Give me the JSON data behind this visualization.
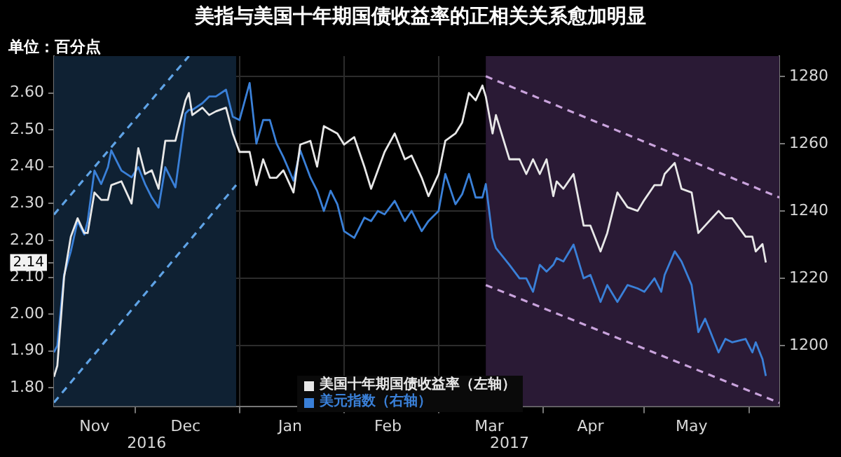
{
  "chart_data": {
    "type": "line",
    "title": "美指与美国十年期国债收益率的正相关关系愈加明显",
    "ylabel": "单位：百分点",
    "x": [
      "2016-11-07",
      "2016-11-08",
      "2016-11-10",
      "2016-11-12",
      "2016-11-14",
      "2016-11-16",
      "2016-11-17",
      "2016-11-19",
      "2016-11-21",
      "2016-11-23",
      "2016-11-24",
      "2016-11-27",
      "2016-11-30",
      "2016-12-02",
      "2016-12-04",
      "2016-12-06",
      "2016-12-08",
      "2016-12-10",
      "2016-12-13",
      "2016-12-16",
      "2016-12-17",
      "2016-12-18",
      "2016-12-21",
      "2016-12-23",
      "2016-12-25",
      "2016-12-28",
      "2016-12-30",
      "2017-01-01",
      "2017-01-04",
      "2017-01-06",
      "2017-01-08",
      "2017-01-10",
      "2017-01-12",
      "2017-01-14",
      "2017-01-17",
      "2017-01-19",
      "2017-01-22",
      "2017-01-24",
      "2017-01-26",
      "2017-01-28",
      "2017-01-30",
      "2017-02-01",
      "2017-02-04",
      "2017-02-07",
      "2017-02-09",
      "2017-02-11",
      "2017-02-13",
      "2017-02-16",
      "2017-02-19",
      "2017-02-21",
      "2017-02-24",
      "2017-02-26",
      "2017-03-01",
      "2017-03-03",
      "2017-03-06",
      "2017-03-08",
      "2017-03-10",
      "2017-03-12",
      "2017-03-14",
      "2017-03-15",
      "2017-03-17",
      "2017-03-18",
      "2017-03-22",
      "2017-03-25",
      "2017-03-27",
      "2017-03-29",
      "2017-03-31",
      "2017-04-02",
      "2017-04-04",
      "2017-04-05",
      "2017-04-07",
      "2017-04-10",
      "2017-04-13",
      "2017-04-15",
      "2017-04-18",
      "2017-04-20",
      "2017-04-23",
      "2017-04-26",
      "2017-04-29",
      "2017-05-01",
      "2017-05-04",
      "2017-05-06",
      "2017-05-07",
      "2017-05-10",
      "2017-05-12",
      "2017-05-15",
      "2017-05-17",
      "2017-05-19",
      "2017-05-23",
      "2017-05-25",
      "2017-05-27",
      "2017-05-31",
      "2017-06-02",
      "2017-06-03",
      "2017-06-05",
      "2017-06-06"
    ],
    "series": [
      {
        "name": "美国十年期国债收益率（左轴）",
        "color": "#e8e8e8",
        "axis": "y",
        "values": [
          1.83,
          1.86,
          2.1,
          2.21,
          2.26,
          2.22,
          2.22,
          2.33,
          2.31,
          2.31,
          2.35,
          2.36,
          2.3,
          2.45,
          2.38,
          2.39,
          2.34,
          2.47,
          2.47,
          2.58,
          2.6,
          2.54,
          2.56,
          2.54,
          2.55,
          2.56,
          2.49,
          2.44,
          2.44,
          2.35,
          2.42,
          2.37,
          2.37,
          2.39,
          2.33,
          2.46,
          2.47,
          2.4,
          2.51,
          2.5,
          2.49,
          2.46,
          2.48,
          2.4,
          2.34,
          2.39,
          2.44,
          2.49,
          2.42,
          2.43,
          2.37,
          2.32,
          2.38,
          2.47,
          2.49,
          2.52,
          2.6,
          2.58,
          2.62,
          2.59,
          2.49,
          2.54,
          2.42,
          2.42,
          2.38,
          2.42,
          2.38,
          2.42,
          2.32,
          2.36,
          2.34,
          2.38,
          2.24,
          2.24,
          2.17,
          2.22,
          2.33,
          2.29,
          2.28,
          2.31,
          2.35,
          2.35,
          2.38,
          2.41,
          2.34,
          2.33,
          2.22,
          2.24,
          2.28,
          2.26,
          2.26,
          2.21,
          2.21,
          2.17,
          2.19,
          2.14
        ]
      },
      {
        "name": "美元指数（右轴）",
        "color": "#3a80d8",
        "axis": "y2",
        "values": [
          1198,
          1200,
          1221,
          1228,
          1237,
          1233,
          1237,
          1252,
          1248,
          1253,
          1258,
          1252,
          1250,
          1253,
          1248,
          1244,
          1241,
          1253,
          1247,
          1269,
          1270,
          1270,
          1272,
          1274,
          1274,
          1276,
          1268,
          1267,
          1278,
          1260,
          1267,
          1267,
          1260,
          1256,
          1249,
          1258,
          1250,
          1246,
          1240,
          1246,
          1242,
          1234,
          1232,
          1238,
          1237,
          1240,
          1239,
          1243,
          1237,
          1240,
          1234,
          1237,
          1240,
          1251,
          1242,
          1245,
          1251,
          1244,
          1244,
          1248,
          1232,
          1229,
          1224,
          1220,
          1220,
          1216,
          1224,
          1222,
          1224,
          1226,
          1225,
          1230,
          1220,
          1221,
          1213,
          1218,
          1213,
          1218,
          1217,
          1216,
          1220,
          1216,
          1221,
          1228,
          1225,
          1218,
          1204,
          1208,
          1198,
          1202,
          1201,
          1202,
          1198,
          1201,
          1196,
          1191
        ]
      },
      {
        "type": "line",
        "color": "#5fa3e6",
        "axis": "y",
        "line_style": "dashed",
        "x": [
          "2016-11-07",
          "2016-12-17"
        ],
        "values": [
          2.27,
          2.7
        ]
      },
      {
        "type": "line",
        "color": "#5fa3e6",
        "axis": "y",
        "line_style": "dashed",
        "x": [
          "2016-11-07",
          "2016-12-31"
        ],
        "values": [
          1.76,
          2.35
        ]
      },
      {
        "type": "line",
        "color": "#c9a3dc",
        "axis": "y2",
        "line_style": "dashed",
        "x": [
          "2017-03-15",
          "2017-06-10"
        ],
        "values": [
          1280,
          1244
        ]
      },
      {
        "type": "line",
        "color": "#c9a3dc",
        "axis": "y2",
        "line_style": "dashed",
        "x": [
          "2017-03-15",
          "2017-06-10"
        ],
        "values": [
          1218,
          1183
        ]
      }
    ],
    "xlim": [
      "2016-11-07",
      "2017-06-10"
    ],
    "xticks": [
      {
        "value": "2016-11-19",
        "label": "Nov"
      },
      {
        "value": "2016-12-01",
        "label": null
      },
      {
        "value": "2016-12-16",
        "label": "Dec"
      },
      {
        "value": "2017-01-01",
        "label": null
      },
      {
        "value": "2017-01-16",
        "label": "Jan"
      },
      {
        "value": "2017-02-01",
        "label": null
      },
      {
        "value": "2017-02-14",
        "label": "Feb"
      },
      {
        "value": "2017-03-01",
        "label": null
      },
      {
        "value": "2017-03-16",
        "label": "Mar"
      },
      {
        "value": "2017-04-01",
        "label": null
      },
      {
        "value": "2017-04-15",
        "label": "Apr"
      },
      {
        "value": "2017-05-01",
        "label": null
      },
      {
        "value": "2017-05-15",
        "label": "May"
      },
      {
        "value": "2017-06-01",
        "label": null
      }
    ],
    "ylim": [
      1.75,
      2.7
    ],
    "yticks": [
      {
        "value": 1.8,
        "label": "1.80"
      },
      {
        "value": 1.9,
        "label": "1.90"
      },
      {
        "value": 2.0,
        "label": "2.00"
      },
      {
        "value": 2.1,
        "label": "2.10"
      },
      {
        "value": 2.14,
        "label": "2.14"
      },
      {
        "value": 2.2,
        "label": "2.20"
      },
      {
        "value": 2.3,
        "label": "2.30"
      },
      {
        "value": 2.4,
        "label": "2.40"
      },
      {
        "value": 2.5,
        "label": "2.50"
      },
      {
        "value": 2.6,
        "label": "2.60"
      }
    ],
    "y2lim": [
      1182,
      1286
    ],
    "y2ticks": [
      1200,
      1220,
      1240,
      1260,
      1280
    ],
    "bands": [
      {
        "axis": "x",
        "from": "2016-11-07",
        "to": "2016-12-31",
        "color": "#0f2133"
      },
      {
        "axis": "x",
        "from": "2017-03-15",
        "to": "2017-06-10",
        "color": "#2a1a35"
      }
    ],
    "annotations": [
      "2016",
      "2017"
    ],
    "grid": true,
    "legend": "bottom",
    "marker": "none",
    "line_style": "solid"
  }
}
